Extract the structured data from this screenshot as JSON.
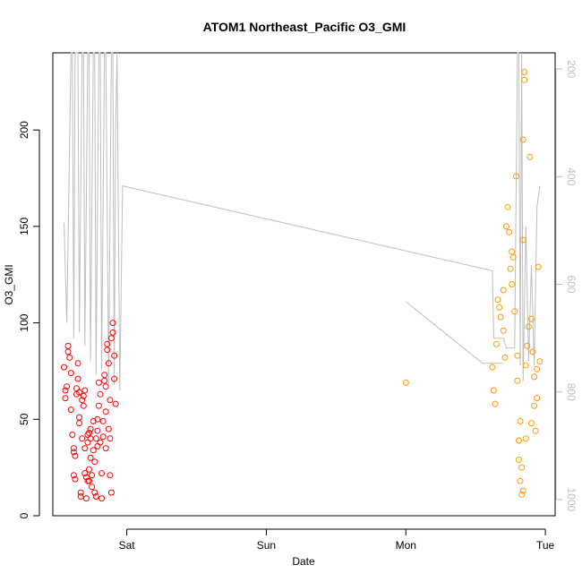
{
  "chart_data": {
    "type": "scatter",
    "title": "ATOM1 Northeast_Pacific O3_GMI",
    "xlabel": "Date",
    "ylabel": "O3_GMI",
    "x_ticks": [
      {
        "x": 1.0,
        "label": "Sat"
      },
      {
        "x": 2.0,
        "label": "Sun"
      },
      {
        "x": 3.0,
        "label": "Mon"
      },
      {
        "x": 4.0,
        "label": "Tue"
      }
    ],
    "xlim": [
      0.47,
      4.07
    ],
    "ylim": [
      0,
      240
    ],
    "y_ticks": [
      0,
      50,
      100,
      150,
      200
    ],
    "y2": {
      "lim": [
        1030,
        170
      ],
      "ticks": [
        200,
        400,
        600,
        800,
        1000
      ],
      "color": "#bebebe"
    },
    "grid": false,
    "colors": {
      "series1": "#ff0000",
      "series2": "#ff9900",
      "line": "#bebebe"
    },
    "series": [
      {
        "values": [
          [
            0.55,
            77
          ],
          [
            0.56,
            65
          ],
          [
            0.56,
            61
          ],
          [
            0.57,
            67
          ],
          [
            0.58,
            88
          ],
          [
            0.58,
            85
          ],
          [
            0.59,
            82
          ],
          [
            0.6,
            74
          ],
          [
            0.6,
            55
          ],
          [
            0.61,
            42
          ],
          [
            0.62,
            33
          ],
          [
            0.62,
            21
          ],
          [
            0.63,
            19
          ],
          [
            0.63,
            31
          ],
          [
            0.64,
            66
          ],
          [
            0.64,
            63
          ],
          [
            0.65,
            79
          ],
          [
            0.65,
            71
          ],
          [
            0.66,
            48
          ],
          [
            0.66,
            51
          ],
          [
            0.67,
            10
          ],
          [
            0.67,
            12
          ],
          [
            0.68,
            40
          ],
          [
            0.68,
            60
          ],
          [
            0.69,
            57
          ],
          [
            0.69,
            62
          ],
          [
            0.7,
            65
          ],
          [
            0.7,
            35
          ],
          [
            0.7,
            22
          ],
          [
            0.71,
            9
          ],
          [
            0.71,
            20
          ],
          [
            0.72,
            42
          ],
          [
            0.72,
            38
          ],
          [
            0.73,
            43
          ],
          [
            0.73,
            24
          ],
          [
            0.73,
            18
          ],
          [
            0.74,
            40
          ],
          [
            0.74,
            45
          ],
          [
            0.75,
            21
          ],
          [
            0.75,
            15
          ],
          [
            0.76,
            34
          ],
          [
            0.76,
            49
          ],
          [
            0.77,
            28
          ],
          [
            0.77,
            12
          ],
          [
            0.78,
            10
          ],
          [
            0.78,
            40
          ],
          [
            0.79,
            36
          ],
          [
            0.79,
            44
          ],
          [
            0.8,
            57
          ],
          [
            0.8,
            69
          ],
          [
            0.81,
            63
          ],
          [
            0.81,
            38
          ],
          [
            0.82,
            22
          ],
          [
            0.82,
            9
          ],
          [
            0.83,
            41
          ],
          [
            0.83,
            49
          ],
          [
            0.84,
            70
          ],
          [
            0.84,
            73
          ],
          [
            0.85,
            54
          ],
          [
            0.85,
            35
          ],
          [
            0.86,
            86
          ],
          [
            0.86,
            89
          ],
          [
            0.87,
            79
          ],
          [
            0.87,
            45
          ],
          [
            0.88,
            40
          ],
          [
            0.88,
            21
          ],
          [
            0.89,
            12
          ],
          [
            0.89,
            92
          ],
          [
            0.9,
            95
          ],
          [
            0.9,
            100
          ],
          [
            0.91,
            83
          ],
          [
            0.91,
            71
          ],
          [
            0.92,
            58
          ],
          [
            0.62,
            35
          ],
          [
            0.66,
            64
          ],
          [
            0.72,
            18
          ],
          [
            0.74,
            30
          ],
          [
            0.79,
            50
          ],
          [
            0.85,
            67
          ],
          [
            0.88,
            60
          ]
        ]
      },
      {
        "values": [
          [
            3.0,
            69
          ],
          [
            3.62,
            77
          ],
          [
            3.63,
            65
          ],
          [
            3.64,
            58
          ],
          [
            3.65,
            89
          ],
          [
            3.66,
            112
          ],
          [
            3.67,
            108
          ],
          [
            3.68,
            103
          ],
          [
            3.7,
            96
          ],
          [
            3.71,
            82
          ],
          [
            3.72,
            150
          ],
          [
            3.73,
            160
          ],
          [
            3.74,
            147
          ],
          [
            3.75,
            128
          ],
          [
            3.76,
            137
          ],
          [
            3.77,
            134
          ],
          [
            3.78,
            106
          ],
          [
            3.79,
            176
          ],
          [
            3.8,
            83
          ],
          [
            3.81,
            29
          ],
          [
            3.81,
            39
          ],
          [
            3.82,
            49
          ],
          [
            3.82,
            18
          ],
          [
            3.83,
            11
          ],
          [
            3.83,
            25
          ],
          [
            3.84,
            143
          ],
          [
            3.84,
            195
          ],
          [
            3.85,
            230
          ],
          [
            3.85,
            226
          ],
          [
            3.86,
            78
          ],
          [
            3.87,
            88
          ],
          [
            3.88,
            98
          ],
          [
            3.89,
            186
          ],
          [
            3.9,
            48
          ],
          [
            3.91,
            85
          ],
          [
            3.92,
            72
          ],
          [
            3.93,
            44
          ],
          [
            3.94,
            61
          ],
          [
            3.95,
            129
          ],
          [
            3.96,
            80
          ],
          [
            3.7,
            117
          ],
          [
            3.76,
            120
          ],
          [
            3.8,
            70
          ],
          [
            3.84,
            13
          ],
          [
            3.86,
            40
          ],
          [
            3.9,
            102
          ],
          [
            3.92,
            57
          ],
          [
            3.94,
            76
          ]
        ]
      }
    ]
  }
}
